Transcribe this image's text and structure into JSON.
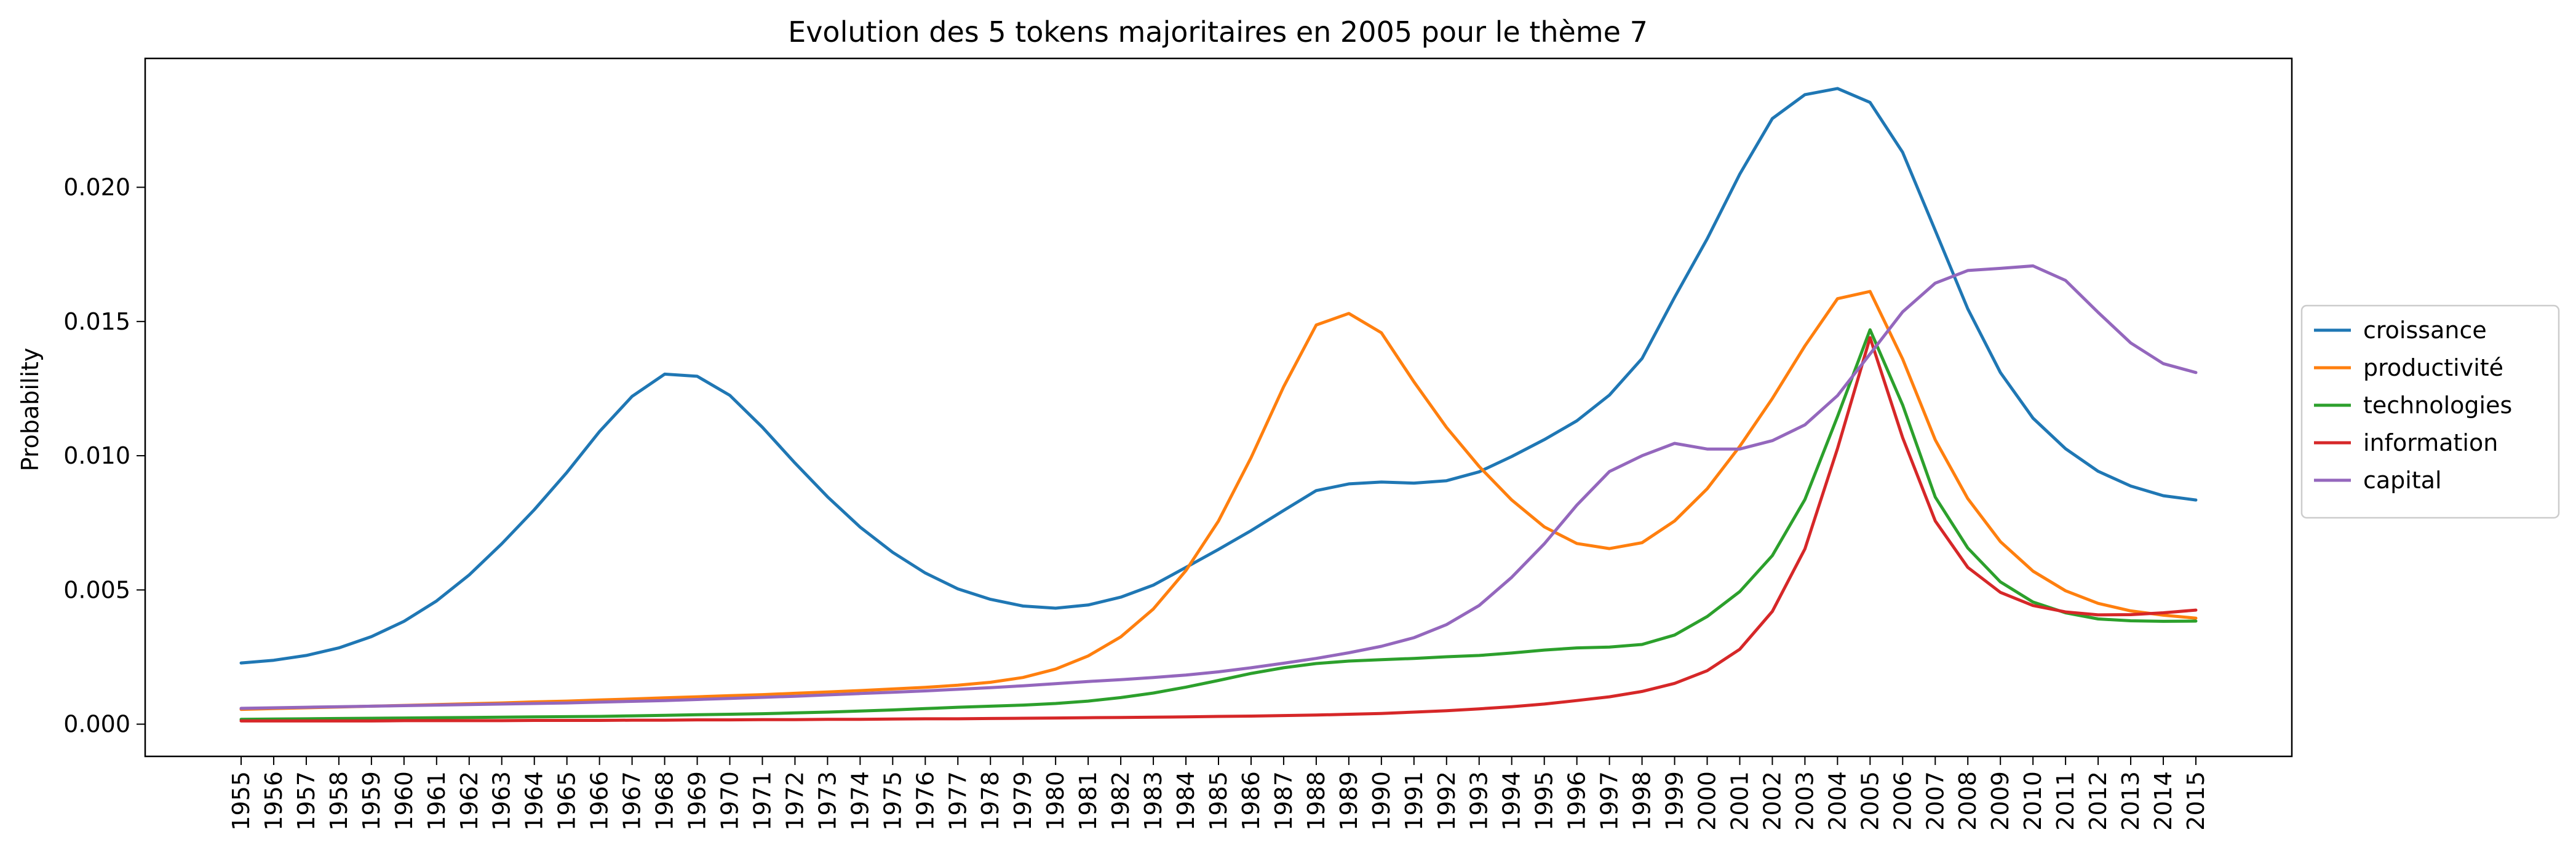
{
  "chart_data": {
    "type": "line",
    "title": "Evolution des 5 tokens majoritaires en 2005 pour le thème 7",
    "xlabel": "",
    "ylabel": "Probability",
    "ylim": [
      -0.0012,
      0.0248
    ],
    "yticks": [
      0.0,
      0.005,
      0.01,
      0.015,
      0.02
    ],
    "ytick_labels": [
      "0.000",
      "0.005",
      "0.010",
      "0.015",
      "0.020"
    ],
    "grid": false,
    "legend_position": "right",
    "x": [
      1955,
      1956,
      1957,
      1958,
      1959,
      1960,
      1961,
      1962,
      1963,
      1964,
      1965,
      1966,
      1967,
      1968,
      1969,
      1970,
      1971,
      1972,
      1973,
      1974,
      1975,
      1976,
      1977,
      1978,
      1979,
      1980,
      1981,
      1982,
      1983,
      1984,
      1985,
      1986,
      1987,
      1988,
      1989,
      1990,
      1991,
      1992,
      1993,
      1994,
      1995,
      1996,
      1997,
      1998,
      1999,
      2000,
      2001,
      2002,
      2003,
      2004,
      2005,
      2006,
      2007,
      2008,
      2009,
      2010,
      2011,
      2012,
      2013,
      2014,
      2015
    ],
    "series": [
      {
        "name": "croissance",
        "color": "#1f77b4",
        "values": [
          0.00228,
          0.00238,
          0.00256,
          0.00284,
          0.00326,
          0.00383,
          0.00459,
          0.00556,
          0.00672,
          0.00799,
          0.00938,
          0.0109,
          0.01221,
          0.01304,
          0.01296,
          0.01225,
          0.01106,
          0.00973,
          0.00847,
          0.00734,
          0.0064,
          0.00563,
          0.00504,
          0.00465,
          0.0044,
          0.00432,
          0.00444,
          0.00473,
          0.00518,
          0.00584,
          0.00651,
          0.00721,
          0.00796,
          0.0087,
          0.00895,
          0.00902,
          0.00898,
          0.00907,
          0.0094,
          0.00997,
          0.0106,
          0.0113,
          0.01226,
          0.01362,
          0.0159,
          0.01808,
          0.02049,
          0.02256,
          0.02345,
          0.02368,
          0.02316,
          0.0213,
          0.01839,
          0.01547,
          0.0131,
          0.0114,
          0.01026,
          0.00942,
          0.00887,
          0.00851,
          0.00835
        ]
      },
      {
        "name": "productivité",
        "color": "#ff7f0e",
        "values": [
          0.00055,
          0.00058,
          0.00061,
          0.00064,
          0.00067,
          0.0007,
          0.00073,
          0.00076,
          0.00079,
          0.00083,
          0.00086,
          0.0009,
          0.00094,
          0.00098,
          0.00102,
          0.00106,
          0.0011,
          0.00115,
          0.0012,
          0.00125,
          0.00131,
          0.00137,
          0.00145,
          0.00156,
          0.00174,
          0.00205,
          0.00254,
          0.00325,
          0.00429,
          0.00572,
          0.00757,
          0.00993,
          0.01257,
          0.01487,
          0.0153,
          0.01458,
          0.01275,
          0.01105,
          0.0096,
          0.00835,
          0.00735,
          0.00673,
          0.00654,
          0.00676,
          0.00757,
          0.00877,
          0.01035,
          0.01213,
          0.01409,
          0.01585,
          0.01612,
          0.0136,
          0.01059,
          0.0084,
          0.0068,
          0.0057,
          0.00497,
          0.0045,
          0.00422,
          0.00406,
          0.00395
        ]
      },
      {
        "name": "technologies",
        "color": "#2ca02c",
        "values": [
          0.00018,
          0.00019,
          0.0002,
          0.00021,
          0.00022,
          0.00023,
          0.00024,
          0.00025,
          0.00026,
          0.00027,
          0.00028,
          0.00029,
          0.00031,
          0.00033,
          0.00035,
          0.00037,
          0.00039,
          0.00042,
          0.00045,
          0.00049,
          0.00053,
          0.00058,
          0.00063,
          0.00067,
          0.00071,
          0.00077,
          0.00086,
          0.00099,
          0.00116,
          0.00138,
          0.00163,
          0.00189,
          0.0021,
          0.00226,
          0.00235,
          0.0024,
          0.00245,
          0.00251,
          0.00256,
          0.00265,
          0.00276,
          0.00284,
          0.00287,
          0.00297,
          0.00332,
          0.00401,
          0.00494,
          0.00628,
          0.00837,
          0.01146,
          0.01469,
          0.01189,
          0.00846,
          0.00656,
          0.0053,
          0.00455,
          0.00415,
          0.00392,
          0.00385,
          0.00383,
          0.00384
        ]
      },
      {
        "name": "information",
        "color": "#d62728",
        "values": [
          0.00012,
          0.00012,
          0.00012,
          0.00012,
          0.00012,
          0.00013,
          0.00013,
          0.00013,
          0.00013,
          0.00014,
          0.00014,
          0.00014,
          0.00015,
          0.00015,
          0.00016,
          0.00016,
          0.00017,
          0.00017,
          0.00018,
          0.00018,
          0.00019,
          0.0002,
          0.0002,
          0.00021,
          0.00022,
          0.00023,
          0.00024,
          0.00025,
          0.00026,
          0.00027,
          0.00029,
          0.0003,
          0.00032,
          0.00034,
          0.00037,
          0.0004,
          0.00045,
          0.0005,
          0.00057,
          0.00065,
          0.00075,
          0.00088,
          0.00102,
          0.00122,
          0.00152,
          0.00199,
          0.00279,
          0.0042,
          0.00653,
          0.01027,
          0.0144,
          0.01067,
          0.00757,
          0.00584,
          0.00491,
          0.00442,
          0.00418,
          0.00407,
          0.00408,
          0.00415,
          0.00425
        ]
      },
      {
        "name": "capital",
        "color": "#9467bd",
        "values": [
          0.00059,
          0.00061,
          0.00063,
          0.00065,
          0.00067,
          0.00069,
          0.00071,
          0.00073,
          0.00075,
          0.00077,
          0.00079,
          0.00082,
          0.00085,
          0.00088,
          0.00092,
          0.00096,
          0.001,
          0.00104,
          0.00109,
          0.00114,
          0.00119,
          0.00124,
          0.0013,
          0.00136,
          0.00143,
          0.00151,
          0.00159,
          0.00166,
          0.00174,
          0.00183,
          0.00195,
          0.0021,
          0.00227,
          0.00245,
          0.00266,
          0.0029,
          0.00322,
          0.00371,
          0.00442,
          0.00547,
          0.00672,
          0.00816,
          0.00941,
          0.01,
          0.01046,
          0.01025,
          0.01025,
          0.01056,
          0.01115,
          0.01224,
          0.01379,
          0.01536,
          0.01643,
          0.0169,
          0.01698,
          0.01707,
          0.01653,
          0.01534,
          0.0142,
          0.01343,
          0.0131
        ]
      }
    ]
  }
}
